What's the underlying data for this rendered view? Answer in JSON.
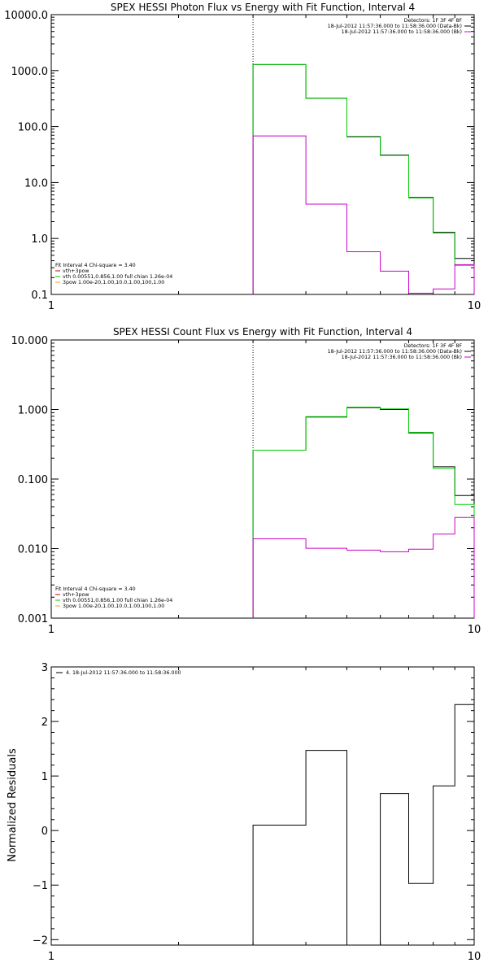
{
  "chart_data": [
    {
      "type": "line",
      "title": "SPEX HESSI Photon Flux vs Energy with Fit Function, Interval 4",
      "ylabel": "",
      "xlog": true,
      "ylog": true,
      "xlim": [
        1,
        10
      ],
      "ylim": [
        0.1,
        10000
      ],
      "xticks": [
        {
          "v": 1,
          "label": "1"
        },
        {
          "v": 10,
          "label": "10"
        }
      ],
      "yticks": [
        {
          "v": 0.1,
          "label": "0.1"
        },
        {
          "v": 1,
          "label": "1.0"
        },
        {
          "v": 10,
          "label": "10.0"
        },
        {
          "v": 100,
          "label": "100.0"
        },
        {
          "v": 1000,
          "label": "1000.0"
        },
        {
          "v": 10000,
          "label": "10000.0"
        }
      ],
      "vline_x": 3,
      "legend_top": [
        "Detectors: 1F 3F 4F 8F",
        "18-Jul-2012 11:57:36.000 to 11:58:36.000 (Data-Bk)",
        "18-Jul-2012 11:57:36.000 to 11:58:36.000 (Bk)"
      ],
      "legend_top_colors": [
        "#000000",
        "#000000",
        "#cc00cc"
      ],
      "legend_bottom": [
        "Fit Interval  4    Chi-square = 3.40",
        "vth+3pow",
        "vth 0.00551,0.856,1.00  full chian 1.26e-04",
        "3pow 1.00e-20,1.00,10.0,1.00,100,1.00"
      ],
      "legend_bottom_colors": [
        "#000000",
        "#cc0000",
        "#00cc00",
        "#ffa500"
      ],
      "edges": [
        3,
        4,
        5,
        6,
        7,
        8,
        9,
        10
      ],
      "series": [
        {
          "color": "#000000",
          "values": [
            1280,
            320,
            66,
            31,
            5.4,
            1.28,
            0.44
          ]
        },
        {
          "color": "#00cc00",
          "values": [
            1280,
            318,
            65,
            30.5,
            5.3,
            1.25,
            0.33
          ]
        },
        {
          "color": "#cc00cc",
          "values": [
            68,
            4.1,
            0.58,
            0.26,
            0.105,
            0.125,
            0.34
          ]
        }
      ]
    },
    {
      "type": "line",
      "title": "SPEX HESSI Count Flux vs Energy with Fit Function, Interval 4",
      "ylabel": "",
      "xlog": true,
      "ylog": true,
      "xlim": [
        1,
        10
      ],
      "ylim": [
        0.001,
        10
      ],
      "xticks": [
        {
          "v": 1,
          "label": "1"
        },
        {
          "v": 10,
          "label": "10"
        }
      ],
      "yticks": [
        {
          "v": 0.001,
          "label": "0.001"
        },
        {
          "v": 0.01,
          "label": "0.010"
        },
        {
          "v": 0.1,
          "label": "0.100"
        },
        {
          "v": 1,
          "label": "1.000"
        },
        {
          "v": 10,
          "label": "10.000"
        }
      ],
      "vline_x": 3,
      "legend_top": [
        "Detectors: 1F 3F 4F 8F",
        "18-Jul-2012 11:57:36.000 to 11:58:36.000 (Data-Bk)",
        "18-Jul-2012 11:57:36.000 to 11:58:36.000 (Bk)"
      ],
      "legend_top_colors": [
        "#000000",
        "#000000",
        "#cc00cc"
      ],
      "legend_bottom": [
        "Fit Interval  4    Chi-square = 3.40",
        "vth+3pow",
        "vth 0.00551,0.856,1.00  full chian 1.26e-04",
        "3pow 1.00e-20,1.00,10.0,1.00,100,1.00"
      ],
      "legend_bottom_colors": [
        "#000000",
        "#cc0000",
        "#00cc00",
        "#ffa500"
      ],
      "edges": [
        3,
        4,
        5,
        6,
        7,
        8,
        9,
        10
      ],
      "series": [
        {
          "color": "#000000",
          "values": [
            0.26,
            0.78,
            1.06,
            1.0,
            0.46,
            0.15,
            0.058
          ]
        },
        {
          "color": "#00cc00",
          "values": [
            0.26,
            0.79,
            1.08,
            1.02,
            0.47,
            0.142,
            0.043
          ]
        },
        {
          "color": "#cc00cc",
          "values": [
            0.0138,
            0.0101,
            0.0095,
            0.009,
            0.0098,
            0.0162,
            0.028
          ]
        }
      ]
    },
    {
      "type": "line",
      "title": "",
      "ylabel": "Normalized Residuals",
      "xlog": true,
      "ylog": false,
      "xlim": [
        1,
        10
      ],
      "ylim": [
        -2.1,
        3
      ],
      "xticks": [
        {
          "v": 1,
          "label": "1"
        },
        {
          "v": 10,
          "label": "10"
        }
      ],
      "yticks": [
        {
          "v": -2,
          "label": "−2"
        },
        {
          "v": -1,
          "label": "−1"
        },
        {
          "v": 0,
          "label": "0"
        },
        {
          "v": 1,
          "label": "1"
        },
        {
          "v": 2,
          "label": "2"
        },
        {
          "v": 3,
          "label": "3"
        }
      ],
      "legend_top": [
        "4. 18-Jul-2012 11:57:36.000 to 11:58:36.000"
      ],
      "legend_top_colors": [
        "#000000"
      ],
      "residuals": [
        {
          "x0": 3,
          "x1": 4,
          "y": 0.1
        },
        {
          "x0": 4,
          "x1": 5,
          "y": 1.47
        },
        {
          "x0": 6,
          "x1": 7,
          "y": 0.68
        },
        {
          "x0": 7,
          "x1": 8,
          "y": -0.97
        },
        {
          "x0": 8,
          "x1": 9,
          "y": 0.82
        },
        {
          "x0": 9,
          "x1": 10,
          "y": 2.31
        }
      ]
    }
  ]
}
